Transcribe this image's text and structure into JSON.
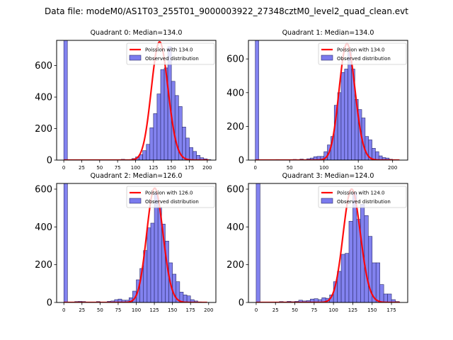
{
  "figure": {
    "suptitle": "Data file: modeM0/AS1T03_255T01_9000003922_27348cztM0_level2_quad_clean.evt",
    "colors": {
      "bar_fill": "#7b7bee",
      "bar_edge": "#2a2a6a",
      "curve": "#ff0000",
      "axes": "#000000"
    }
  },
  "chart_data": [
    {
      "type": "bar",
      "title": "Quadrant 0: Median=134.0",
      "xlabel": "",
      "ylabel": "",
      "xlim": [
        -10,
        212
      ],
      "ylim": [
        0,
        760
      ],
      "xticks": [
        0,
        25,
        50,
        75,
        100,
        125,
        150,
        175,
        200
      ],
      "yticks": [
        0,
        200,
        400,
        600
      ],
      "legend_position": "top-right",
      "legend": [
        "Poission with 134.0",
        "Observed distribution"
      ],
      "poisson_mean": 134.0,
      "poisson_peak": 750,
      "curve_range": [
        0,
        202
      ],
      "bin_width": 5,
      "bins": [
        [
          0,
          760
        ],
        [
          80,
          5
        ],
        [
          85,
          3
        ],
        [
          95,
          10
        ],
        [
          100,
          20
        ],
        [
          105,
          35
        ],
        [
          110,
          60
        ],
        [
          115,
          100
        ],
        [
          120,
          205
        ],
        [
          125,
          295
        ],
        [
          130,
          420
        ],
        [
          135,
          575
        ],
        [
          140,
          585
        ],
        [
          145,
          720
        ],
        [
          150,
          500
        ],
        [
          155,
          410
        ],
        [
          160,
          340
        ],
        [
          165,
          210
        ],
        [
          170,
          140
        ],
        [
          175,
          80
        ],
        [
          180,
          55
        ],
        [
          185,
          30
        ],
        [
          190,
          15
        ],
        [
          195,
          8
        ],
        [
          200,
          3
        ]
      ]
    },
    {
      "type": "bar",
      "title": "Quadrant 1: Median=134.0",
      "xlabel": "",
      "ylabel": "",
      "xlim": [
        -10,
        222
      ],
      "ylim": [
        0,
        710
      ],
      "xticks": [
        0,
        50,
        100,
        150,
        200
      ],
      "yticks": [
        0,
        200,
        400,
        600
      ],
      "legend_position": "top-right",
      "legend": [
        "Poission with 134.0",
        "Observed distribution"
      ],
      "poisson_mean": 134.0,
      "poisson_peak": 690,
      "curve_range": [
        0,
        210
      ],
      "bin_width": 5,
      "bins": [
        [
          0,
          710
        ],
        [
          30,
          3
        ],
        [
          55,
          4
        ],
        [
          65,
          6
        ],
        [
          75,
          8
        ],
        [
          80,
          12
        ],
        [
          85,
          20
        ],
        [
          90,
          22
        ],
        [
          95,
          22
        ],
        [
          100,
          50
        ],
        [
          105,
          90
        ],
        [
          110,
          140
        ],
        [
          115,
          325
        ],
        [
          120,
          400
        ],
        [
          125,
          520
        ],
        [
          130,
          540
        ],
        [
          135,
          640
        ],
        [
          140,
          540
        ],
        [
          145,
          360
        ],
        [
          150,
          300
        ],
        [
          155,
          250
        ],
        [
          160,
          140
        ],
        [
          165,
          120
        ],
        [
          170,
          70
        ],
        [
          175,
          50
        ],
        [
          180,
          25
        ],
        [
          185,
          15
        ],
        [
          190,
          12
        ],
        [
          195,
          5
        ]
      ]
    },
    {
      "type": "bar",
      "title": "Quadrant 2: Median=126.0",
      "xlabel": "",
      "ylabel": "",
      "xlim": [
        -10,
        210
      ],
      "ylim": [
        0,
        630
      ],
      "xticks": [
        0,
        25,
        50,
        75,
        100,
        125,
        150,
        175,
        200
      ],
      "yticks": [
        0,
        200,
        400,
        600
      ],
      "legend_position": "top-right",
      "legend": [
        "Poission with 126.0",
        "Observed distribution"
      ],
      "poisson_mean": 126.0,
      "poisson_peak": 605,
      "curve_range": [
        0,
        198
      ],
      "bin_width": 5,
      "bins": [
        [
          0,
          630
        ],
        [
          15,
          5
        ],
        [
          20,
          6
        ],
        [
          25,
          5
        ],
        [
          45,
          5
        ],
        [
          60,
          6
        ],
        [
          65,
          8
        ],
        [
          70,
          15
        ],
        [
          75,
          18
        ],
        [
          80,
          12
        ],
        [
          85,
          12
        ],
        [
          90,
          25
        ],
        [
          95,
          60
        ],
        [
          100,
          120
        ],
        [
          105,
          180
        ],
        [
          110,
          275
        ],
        [
          115,
          395
        ],
        [
          120,
          420
        ],
        [
          125,
          580
        ],
        [
          130,
          505
        ],
        [
          135,
          415
        ],
        [
          140,
          325
        ],
        [
          145,
          210
        ],
        [
          150,
          150
        ],
        [
          155,
          110
        ],
        [
          160,
          55
        ],
        [
          165,
          40
        ],
        [
          170,
          35
        ],
        [
          175,
          15
        ],
        [
          180,
          8
        ],
        [
          185,
          3
        ]
      ]
    },
    {
      "type": "bar",
      "title": "Quadrant 3: Median=124.0",
      "xlabel": "",
      "ylabel": "",
      "xlim": [
        -10,
        196
      ],
      "ylim": [
        0,
        630
      ],
      "xticks": [
        0,
        25,
        50,
        75,
        100,
        125,
        150,
        175
      ],
      "yticks": [
        0,
        200,
        400,
        600
      ],
      "legend_position": "top-right",
      "legend": [
        "Poission with 124.0",
        "Observed distribution"
      ],
      "poisson_mean": 124.0,
      "poisson_peak": 600,
      "curve_range": [
        0,
        186
      ],
      "bin_width": 5,
      "bins": [
        [
          0,
          630
        ],
        [
          30,
          5
        ],
        [
          35,
          3
        ],
        [
          40,
          6
        ],
        [
          45,
          4
        ],
        [
          50,
          6
        ],
        [
          55,
          12
        ],
        [
          60,
          8
        ],
        [
          65,
          10
        ],
        [
          70,
          18
        ],
        [
          75,
          20
        ],
        [
          80,
          15
        ],
        [
          85,
          25
        ],
        [
          90,
          22
        ],
        [
          95,
          40
        ],
        [
          100,
          110
        ],
        [
          105,
          165
        ],
        [
          110,
          255
        ],
        [
          115,
          260
        ],
        [
          120,
          430
        ],
        [
          125,
          580
        ],
        [
          130,
          440
        ],
        [
          135,
          520
        ],
        [
          140,
          460
        ],
        [
          145,
          350
        ],
        [
          150,
          210
        ],
        [
          155,
          210
        ],
        [
          160,
          95
        ],
        [
          165,
          45
        ],
        [
          170,
          45
        ],
        [
          175,
          15
        ],
        [
          180,
          5
        ]
      ]
    }
  ]
}
